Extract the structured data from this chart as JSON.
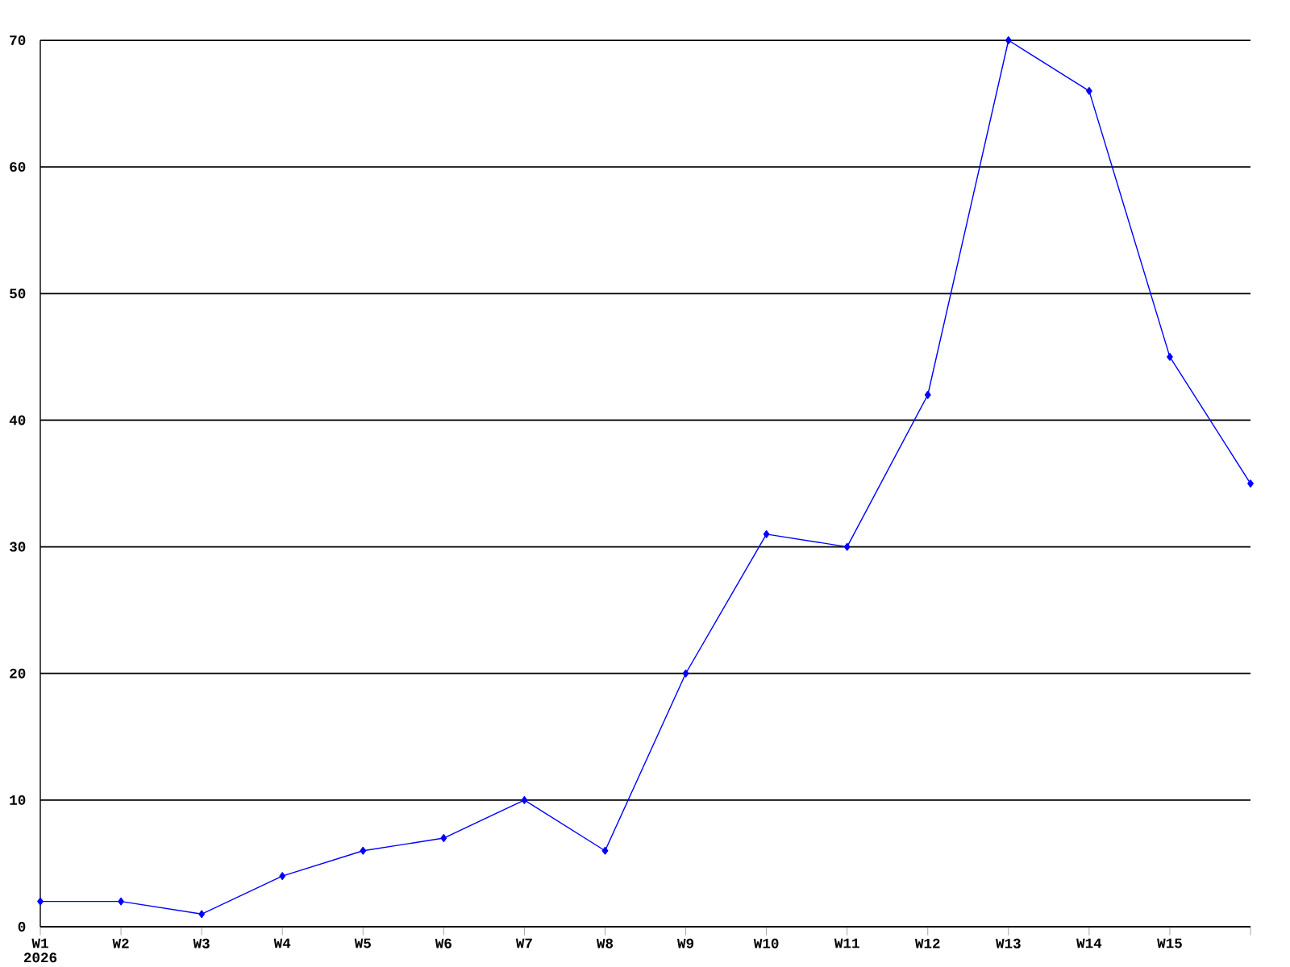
{
  "chart_data": {
    "type": "line",
    "categories": [
      "W1",
      "W2",
      "W3",
      "W4",
      "W5",
      "W6",
      "W7",
      "W8",
      "W9",
      "W10",
      "W11",
      "W12",
      "W13",
      "W14",
      "W15",
      null
    ],
    "values": [
      2,
      2,
      1,
      4,
      6,
      7,
      10,
      6,
      20,
      31,
      30,
      42,
      70,
      66,
      45,
      35
    ],
    "color": "#0000ff",
    "marker": "diamond",
    "ylim": [
      0,
      70
    ],
    "yticks": [
      0,
      10,
      20,
      30,
      40,
      50,
      60,
      70
    ],
    "grid": "y",
    "annotations": [
      "2026"
    ]
  }
}
